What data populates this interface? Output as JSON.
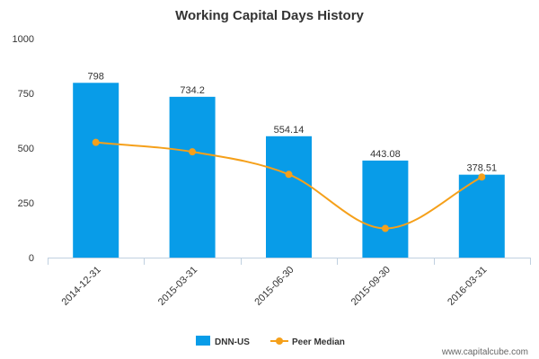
{
  "chart_data": {
    "type": "bar",
    "title": "Working Capital Days History",
    "categories": [
      "2014-12-31",
      "2015-03-31",
      "2015-06-30",
      "2015-09-30",
      "2016-03-31"
    ],
    "series": [
      {
        "name": "DNN-US",
        "type": "bar",
        "color": "#089ce8",
        "values": [
          798,
          734.2,
          554.14,
          443.08,
          378.51
        ],
        "labels": [
          "798",
          "734.2",
          "554.14",
          "443.08",
          "378.51"
        ]
      },
      {
        "name": "Peer Median",
        "type": "line",
        "color": "#f5a01a",
        "values": [
          526,
          483,
          380,
          133,
          368
        ]
      }
    ],
    "ylim": [
      0,
      1000
    ],
    "yticks": [
      "0",
      "250",
      "500",
      "750",
      "1000"
    ],
    "ytick_values": [
      0,
      250,
      500,
      750,
      1000
    ],
    "grid": false,
    "legend_position": "bottom"
  },
  "watermark": "www.capitalcube.com"
}
